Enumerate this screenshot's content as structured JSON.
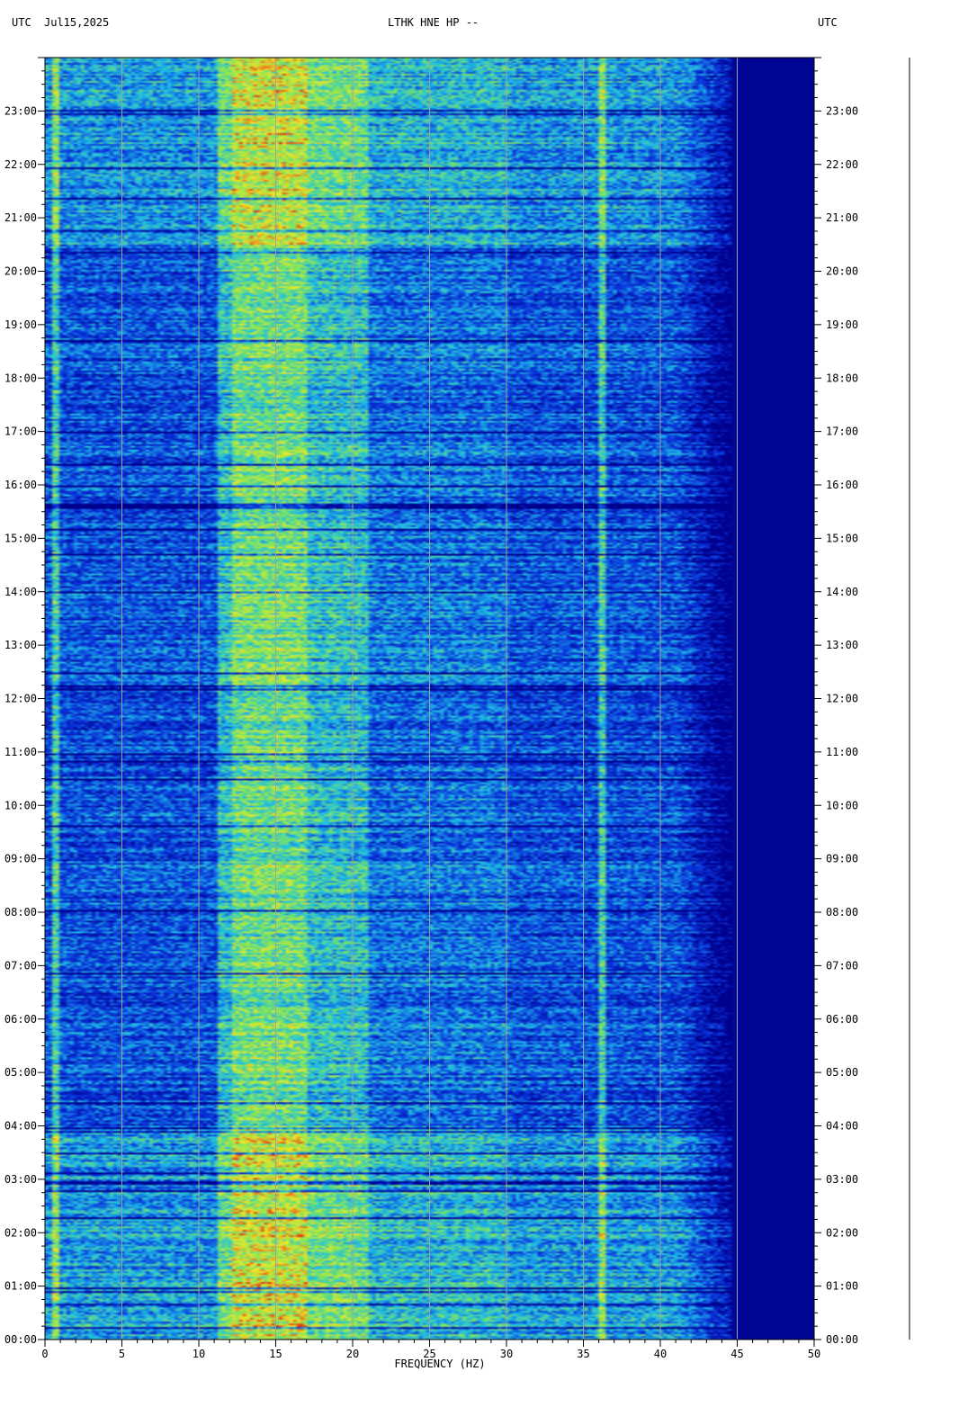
{
  "header": {
    "left_timezone": "UTC",
    "date": "Jul15,2025",
    "station": "LTHK HNE HP --",
    "right_timezone": "UTC"
  },
  "chart_data": {
    "type": "heatmap",
    "title": "LTHK HNE HP --",
    "xlabel": "FREQUENCY (HZ)",
    "ylabel": "",
    "xlim": [
      0,
      50
    ],
    "ylim_hours": [
      0,
      24
    ],
    "x_ticks": [
      "0",
      "5",
      "10",
      "15",
      "20",
      "25",
      "30",
      "35",
      "40",
      "45",
      "50"
    ],
    "y_ticks": [
      "00:00",
      "01:00",
      "02:00",
      "03:00",
      "04:00",
      "05:00",
      "06:00",
      "07:00",
      "08:00",
      "09:00",
      "10:00",
      "11:00",
      "12:00",
      "13:00",
      "14:00",
      "15:00",
      "16:00",
      "17:00",
      "18:00",
      "19:00",
      "20:00",
      "21:00",
      "22:00",
      "23:00"
    ],
    "grid": true,
    "colors": {
      "deep": "#00008c",
      "blue": "#0a3cd2",
      "cyan": "#1ec8e6",
      "green": "#8ce650",
      "yellow": "#f0e628",
      "red": "#d21e14",
      "gridline": "#a0a0a0"
    },
    "energy_band_hz": [
      11,
      21
    ],
    "peak_band_hz": [
      12,
      17
    ],
    "spectral_cutoff_hz": 43,
    "persistent_lines_hz": [
      0.5,
      36.1
    ]
  }
}
